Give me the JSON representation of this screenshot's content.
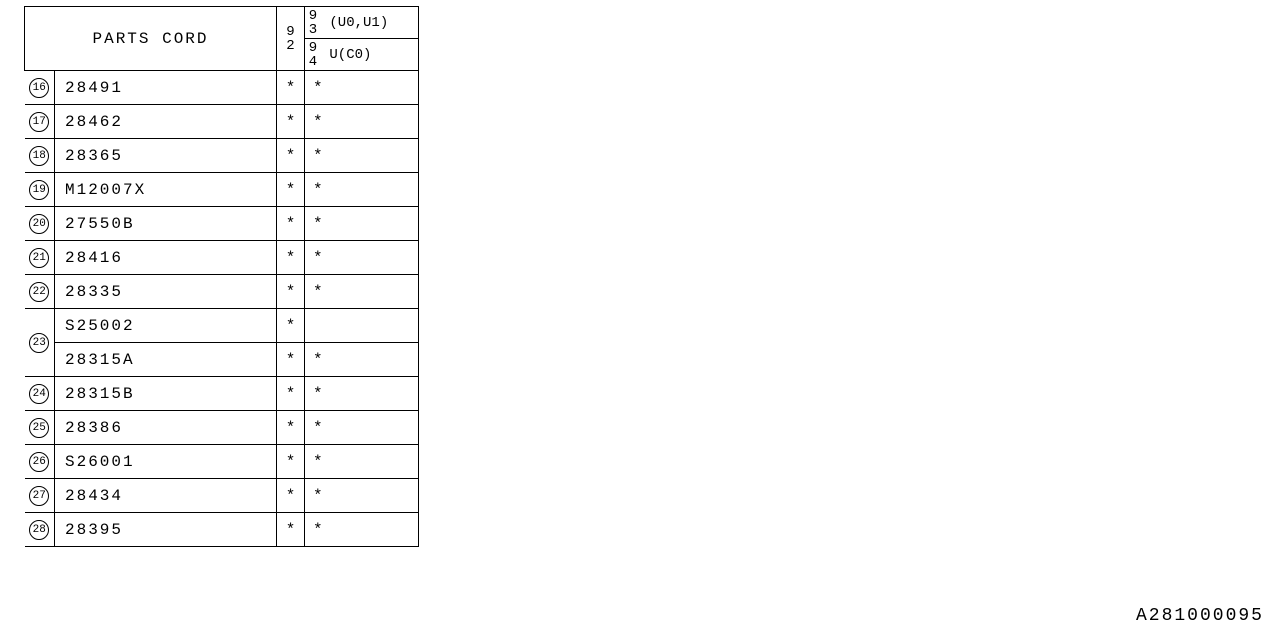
{
  "header": {
    "parts_label": "PARTS CORD",
    "col92_a": "9",
    "col92_b": "2",
    "col93_a": "9",
    "col93_b": "3",
    "col93_txt": "(U0,U1)",
    "col94_a": "9",
    "col94_b": "4",
    "col94_txt": "U(C0)"
  },
  "rows": [
    {
      "idx": "16",
      "part": "28491",
      "a": "*",
      "b": "*"
    },
    {
      "idx": "17",
      "part": "28462",
      "a": "*",
      "b": "*"
    },
    {
      "idx": "18",
      "part": "28365",
      "a": "*",
      "b": "*"
    },
    {
      "idx": "19",
      "part": "M12007X",
      "a": "*",
      "b": "*"
    },
    {
      "idx": "20",
      "part": "27550B",
      "a": "*",
      "b": "*"
    },
    {
      "idx": "21",
      "part": "28416",
      "a": "*",
      "b": "*"
    },
    {
      "idx": "22",
      "part": "28335",
      "a": "*",
      "b": "*"
    },
    {
      "idx": "23",
      "part": "S25002",
      "a": "*",
      "b": ""
    },
    {
      "idx": "",
      "part": "28315A",
      "a": "*",
      "b": "*"
    },
    {
      "idx": "24",
      "part": "28315B",
      "a": "*",
      "b": "*"
    },
    {
      "idx": "25",
      "part": "28386",
      "a": "*",
      "b": "*"
    },
    {
      "idx": "26",
      "part": "S26001",
      "a": "*",
      "b": "*"
    },
    {
      "idx": "27",
      "part": "28434",
      "a": "*",
      "b": "*"
    },
    {
      "idx": "28",
      "part": "28395",
      "a": "*",
      "b": "*"
    }
  ],
  "footer_code": "A281000095"
}
